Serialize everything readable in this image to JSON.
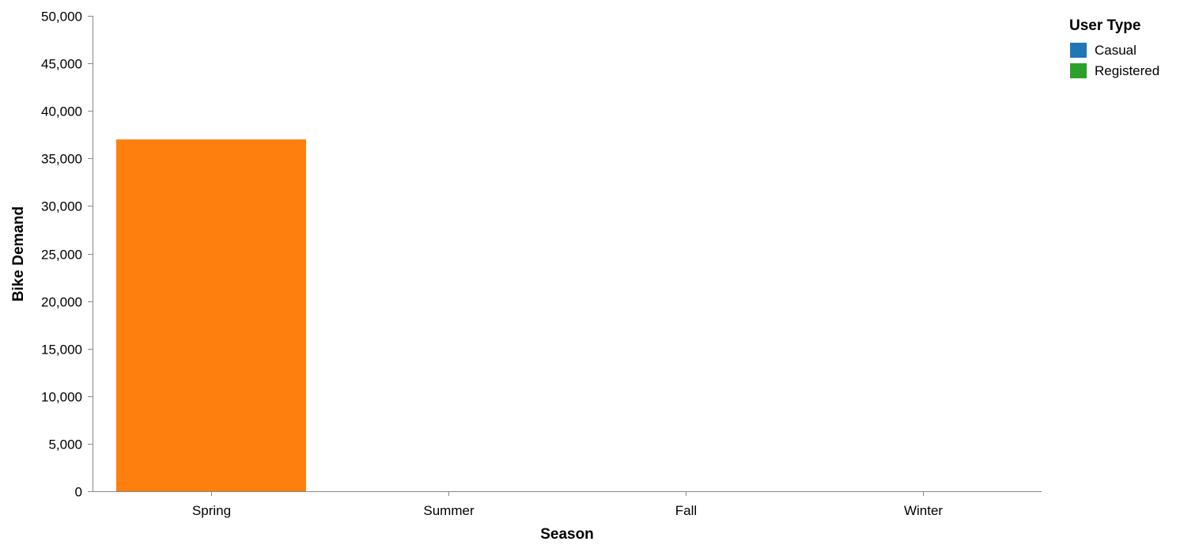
{
  "chart_data": {
    "type": "bar",
    "categories": [
      "Spring",
      "Summer",
      "Fall",
      "Winter"
    ],
    "values": [
      37000,
      0,
      0,
      0
    ],
    "bar_color": "#ff7f0e",
    "xlabel": "Season",
    "ylabel": "Bike Demand",
    "ylim": [
      0,
      50000
    ],
    "yticks": [
      0,
      5000,
      10000,
      15000,
      20000,
      25000,
      30000,
      35000,
      40000,
      45000,
      50000
    ],
    "ytick_labels": [
      "0",
      "5,000",
      "10,000",
      "15,000",
      "20,000",
      "25,000",
      "30,000",
      "35,000",
      "40,000",
      "45,000",
      "50,000"
    ],
    "grid": false,
    "legend": {
      "title": "User Type",
      "placement": "top-right",
      "entries": [
        {
          "label": "Casual",
          "color": "#1f77b4"
        },
        {
          "label": "Registered",
          "color": "#2ca02c"
        }
      ]
    }
  }
}
